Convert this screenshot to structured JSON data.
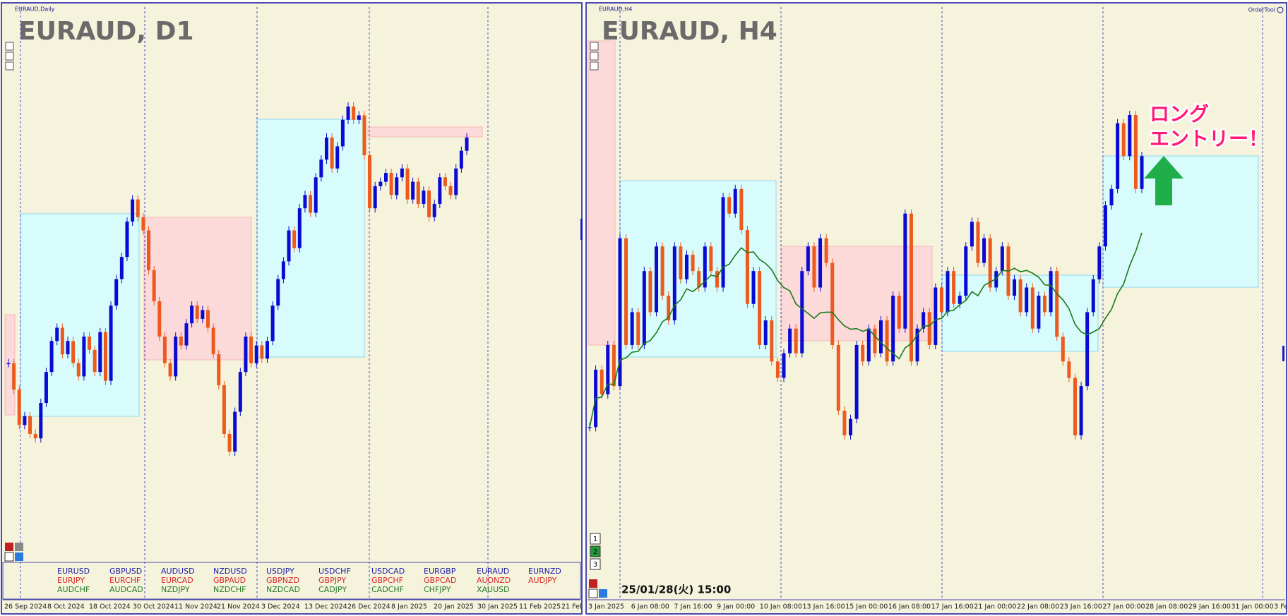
{
  "left": {
    "tab_label": "EURAUD,Daily",
    "title": "EURAUD, D1",
    "closes": [
      1.624,
      1.618,
      1.61,
      1.612,
      1.608,
      1.607,
      1.615,
      1.622,
      1.629,
      1.632,
      1.626,
      1.629,
      1.624,
      1.621,
      1.63,
      1.627,
      1.622,
      1.631,
      1.62,
      1.637,
      1.643,
      1.648,
      1.656,
      1.661,
      1.657,
      1.654,
      1.645,
      1.638,
      1.63,
      1.624,
      1.621,
      1.63,
      1.628,
      1.633,
      1.637,
      1.634,
      1.636,
      1.632,
      1.626,
      1.619,
      1.608,
      1.604,
      1.613,
      1.622,
      1.63,
      1.624,
      1.628,
      1.625,
      1.629,
      1.637,
      1.643,
      1.647,
      1.654,
      1.65,
      1.659,
      1.662,
      1.658,
      1.666,
      1.67,
      1.675,
      1.668,
      1.673,
      1.679,
      1.682,
      1.679,
      1.68,
      1.671,
      1.659,
      1.664,
      1.665,
      1.667,
      1.662,
      1.666,
      1.668,
      1.661,
      1.665,
      1.66,
      1.663,
      1.657,
      1.66,
      1.666,
      1.664,
      1.662,
      1.668,
      1.672,
      1.675
    ],
    "dates": [
      "26 Sep 2024",
      "8 Oct 2024",
      "18 Oct 2024",
      "30 Oct 2024",
      "11 Nov 2024",
      "21 Nov 2024",
      "3 Dec 2024",
      "13 Dec 2024",
      "26 Dec 2024",
      "8 Jan 2025",
      "20 Jan 2025",
      "30 Jan 2025",
      "11 Feb 2025",
      "21 Feb"
    ]
  },
  "right": {
    "tab_label": "EURAUD,H4",
    "title": "EURAUD, H4",
    "tool_label": "OrderTool",
    "closes": [
      1.648,
      1.655,
      1.652,
      1.658,
      1.653,
      1.671,
      1.658,
      1.662,
      1.658,
      1.667,
      1.662,
      1.67,
      1.664,
      1.661,
      1.67,
      1.666,
      1.669,
      1.667,
      1.665,
      1.67,
      1.667,
      1.665,
      1.676,
      1.674,
      1.677,
      1.672,
      1.663,
      1.667,
      1.658,
      1.661,
      1.656,
      1.654,
      1.657,
      1.66,
      1.657,
      1.667,
      1.67,
      1.665,
      1.671,
      1.668,
      1.658,
      1.65,
      1.647,
      1.649,
      1.658,
      1.656,
      1.66,
      1.657,
      1.661,
      1.656,
      1.664,
      1.66,
      1.674,
      1.656,
      1.66,
      1.662,
      1.658,
      1.665,
      1.662,
      1.667,
      1.663,
      1.664,
      1.67,
      1.673,
      1.668,
      1.671,
      1.665,
      1.667,
      1.67,
      1.664,
      1.666,
      1.662,
      1.665,
      1.66,
      1.664,
      1.662,
      1.667,
      1.659,
      1.656,
      1.654,
      1.647,
      1.653,
      1.662,
      1.666,
      1.67,
      1.675,
      1.677,
      1.685,
      1.681,
      1.686,
      1.677,
      1.681
    ],
    "dates": [
      "3 Jan 2025",
      "6 Jan 08:00",
      "7 Jan 16:00",
      "9 Jan 00:00",
      "10 Jan 08:00",
      "13 Jan 16:00",
      "15 Jan 00:00",
      "16 Jan 08:00",
      "17 Jan 16:00",
      "21 Jan 00:00",
      "22 Jan 08:00",
      "23 Jan 16:00",
      "27 Jan 00:00",
      "28 Jan 08:00",
      "29 Jan 16:00",
      "31 Jan 00:00",
      "3 Fe"
    ],
    "timestamp": "25/01/28(火) 15:00",
    "callout": [
      "ロング",
      "エントリー！"
    ]
  },
  "symbols": [
    [
      "EURUSD",
      "GBPUSD",
      "AUDUSD",
      "NZDUSD",
      "USDJPY",
      "USDCHF",
      "USDCAD",
      "EURGBP",
      "EURAUD",
      "EURNZD"
    ],
    [
      "EURJPY",
      "EURCHF",
      "EURCAD",
      "GBPAUD",
      "GBPNZD",
      "GBPJPY",
      "GBPCHF",
      "GBPCAD",
      "AUDNZD",
      "AUDJPY"
    ],
    [
      "AUDCHF",
      "AUDCAD",
      "NZDJPY",
      "NZDCHF",
      "NZDCAD",
      "CADJPY",
      "CADCHF",
      "CHFJPY",
      "XAUUSD"
    ]
  ],
  "buttons": [
    "1",
    "2",
    "3"
  ]
}
